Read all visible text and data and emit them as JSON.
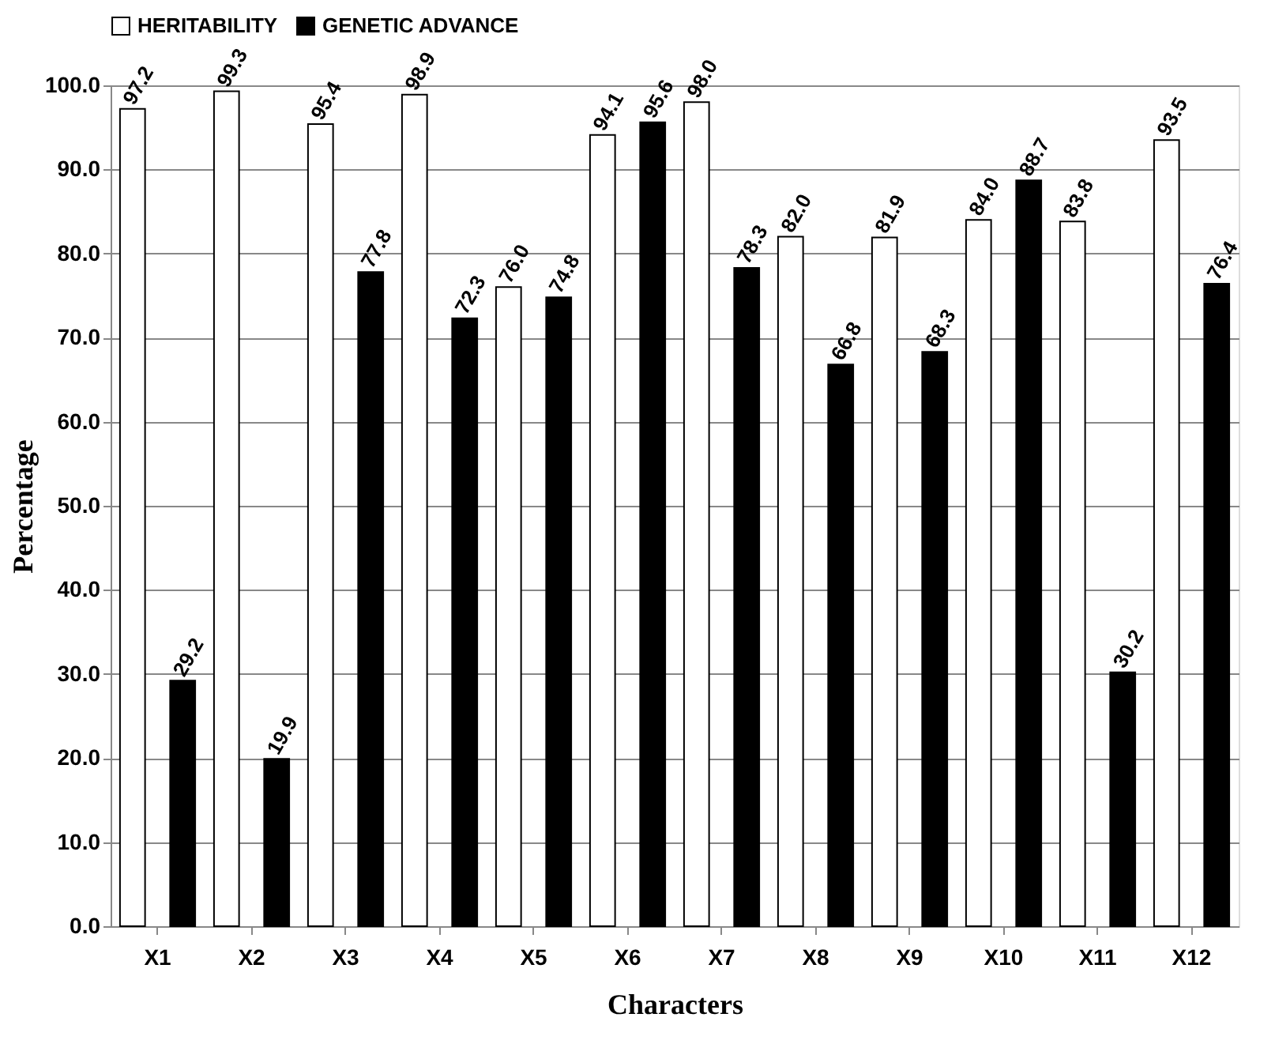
{
  "chart_data": {
    "type": "bar",
    "xlabel": "Characters",
    "ylabel": "Percentage",
    "categories": [
      "X1",
      "X2",
      "X3",
      "X4",
      "X5",
      "X6",
      "X7",
      "X8",
      "X9",
      "X10",
      "X11",
      "X12"
    ],
    "series": [
      {
        "name": "HERITABILITY",
        "color": "#ffffff",
        "values": [
          97.2,
          99.3,
          95.4,
          98.9,
          76.0,
          94.1,
          98.0,
          82.0,
          81.9,
          84.0,
          83.8,
          93.5
        ],
        "value_labels": [
          "97.2",
          "99.3",
          "95.4",
          "98.9",
          "76.0",
          "94.1",
          "98.0",
          "82.0",
          "81.9",
          "84.0",
          "83.8",
          "93.5"
        ]
      },
      {
        "name": "GENETIC ADVANCE",
        "color": "#000000",
        "values": [
          29.2,
          19.9,
          77.8,
          72.3,
          74.8,
          95.6,
          78.3,
          66.8,
          68.3,
          88.7,
          30.2,
          76.4
        ],
        "value_labels": [
          "29.2",
          "19.9",
          "77.8",
          "72.3",
          "74.8",
          "95.6",
          "78.3",
          "66.8",
          "68.3",
          "88.7",
          "30.2",
          "76.4"
        ]
      }
    ],
    "ylim": [
      0,
      100
    ],
    "yticks": [
      {
        "value": 0,
        "label": "0.0"
      },
      {
        "value": 10,
        "label": "10.0"
      },
      {
        "value": 20,
        "label": "20.0"
      },
      {
        "value": 30,
        "label": "30.0"
      },
      {
        "value": 40,
        "label": "40.0"
      },
      {
        "value": 50,
        "label": "50.0"
      },
      {
        "value": 60,
        "label": "60.0"
      },
      {
        "value": 70,
        "label": "70.0"
      },
      {
        "value": 80,
        "label": "80.0"
      },
      {
        "value": 90,
        "label": "90.0"
      },
      {
        "value": 100,
        "label": "100.0"
      }
    ],
    "grid": "y",
    "legend": "top left"
  }
}
